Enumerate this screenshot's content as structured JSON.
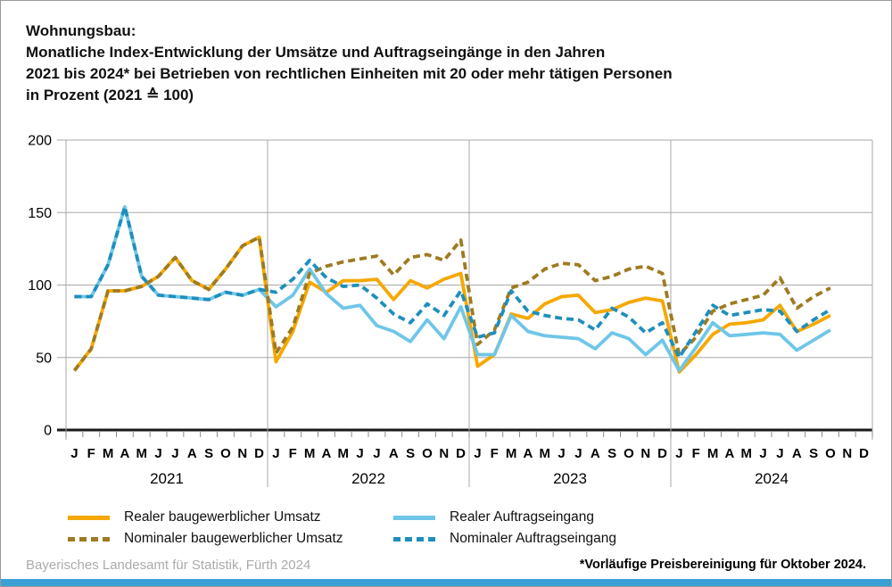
{
  "title": {
    "line1": "Wohnungsbau:",
    "line2": "Monatliche Index-Entwicklung der Umsätze und Auftragseingänge in den Jahren",
    "line3": "2021 bis 2024* bei Betrieben von rechtlichen Einheiten mit 20 oder mehr tätigen Personen",
    "line4": "in Prozent (2021 ≙ 100)"
  },
  "footer": {
    "source": "Bayerisches Landesamt für Statistik, Fürth 2024",
    "note": "*Vorläufige Preisbereinigung für Oktober 2024."
  },
  "colors": {
    "accent_bar": "#3ba0d5",
    "grid": "#a9a9a9",
    "axis": "#1a1a1a",
    "tick": "#8c8c8c",
    "label": "#000000"
  },
  "chart_data": {
    "type": "line",
    "title": "Wohnungsbau: Monatliche Index-Entwicklung der Umsätze und Auftragseingänge 2021 bis 2024, in Prozent (2021 ≙ 100)",
    "ylim": [
      0,
      200
    ],
    "yticks": [
      0,
      50,
      100,
      150,
      200
    ],
    "grid": "horizontal gridlines on, vertical year separators",
    "legend_position": "below chart, two columns",
    "month_letters": [
      "J",
      "F",
      "M",
      "A",
      "M",
      "J",
      "J",
      "A",
      "S",
      "O",
      "N",
      "D"
    ],
    "years": [
      "2021",
      "2022",
      "2023",
      "2024"
    ],
    "values_start": "Januar 2021",
    "values_end": "Oktober 2024",
    "series": [
      {
        "id": "realer-baugewerblicher-umsatz",
        "name": "Realer baugewerblicher Umsatz",
        "color": "#f6a800",
        "dash": false,
        "values": [
          41,
          56,
          96,
          96,
          99,
          106,
          119,
          103,
          97,
          111,
          127,
          133,
          47,
          68,
          102,
          95,
          103,
          103,
          104,
          90,
          103,
          98,
          104,
          108,
          44,
          52,
          80,
          77,
          87,
          92,
          93,
          81,
          83,
          88,
          91,
          89,
          40,
          52,
          66,
          73,
          74,
          76,
          86,
          68,
          73,
          79
        ]
      },
      {
        "id": "nominaler-baugewerblicher-umsatz",
        "name": "Nominaler baugewerblicher Umsatz",
        "color": "#9e7b20",
        "dash": true,
        "values": [
          41,
          56,
          96,
          96,
          99,
          106,
          119,
          103,
          97,
          111,
          127,
          133,
          53,
          71,
          108,
          113,
          116,
          118,
          120,
          107,
          119,
          121,
          117,
          131,
          59,
          69,
          98,
          102,
          111,
          115,
          114,
          103,
          106,
          111,
          113,
          108,
          52,
          64,
          82,
          87,
          90,
          93,
          105,
          84,
          92,
          98
        ]
      },
      {
        "id": "realer-auftragseingang",
        "name": "Realer Auftragseingang",
        "color": "#6fc6e8",
        "dash": false,
        "values": [
          92,
          92,
          114,
          154,
          106,
          93,
          92,
          91,
          90,
          95,
          93,
          97,
          85,
          93,
          111,
          94,
          84,
          86,
          72,
          68,
          61,
          76,
          63,
          85,
          52,
          52,
          79,
          68,
          65,
          64,
          63,
          56,
          67,
          63,
          52,
          62,
          41,
          57,
          74,
          65,
          66,
          67,
          66,
          55,
          62,
          69
        ]
      },
      {
        "id": "nominaler-auftragseingang",
        "name": "Nominaler Auftragseingang",
        "color": "#1e8fbd",
        "dash": true,
        "values": [
          92,
          92,
          114,
          154,
          106,
          93,
          92,
          91,
          90,
          95,
          93,
          97,
          95,
          104,
          117,
          105,
          99,
          100,
          91,
          80,
          74,
          87,
          79,
          96,
          64,
          67,
          96,
          82,
          79,
          77,
          76,
          69,
          84,
          78,
          67,
          74,
          50,
          68,
          86,
          79,
          81,
          83,
          82,
          68,
          76,
          83
        ]
      }
    ]
  }
}
